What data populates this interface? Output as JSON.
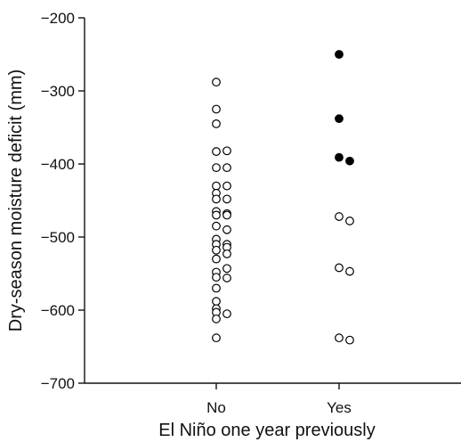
{
  "chart_data": {
    "type": "scatter",
    "title": "",
    "xlabel": "El Niño one year previously",
    "ylabel": "Dry-season moisture deficit (mm)",
    "categories": [
      "No",
      "Yes"
    ],
    "ylim": [
      -700,
      -200
    ],
    "yticks": [
      -200,
      -300,
      -400,
      -500,
      -600,
      -700
    ],
    "ytick_labels": [
      "−200",
      "−300",
      "−400",
      "−500",
      "−600",
      "−700"
    ],
    "grid": false,
    "legend": "none",
    "series": [
      {
        "marker": "open-circle",
        "points": [
          {
            "x": "No",
            "offset": 0,
            "y": -288
          },
          {
            "x": "No",
            "offset": 0,
            "y": -325
          },
          {
            "x": "No",
            "offset": 0,
            "y": -345
          },
          {
            "x": "No",
            "offset": 0,
            "y": -383
          },
          {
            "x": "No",
            "offset": 1,
            "y": -382
          },
          {
            "x": "No",
            "offset": 0,
            "y": -405
          },
          {
            "x": "No",
            "offset": 1,
            "y": -405
          },
          {
            "x": "No",
            "offset": 0,
            "y": -430
          },
          {
            "x": "No",
            "offset": 1,
            "y": -430
          },
          {
            "x": "No",
            "offset": 0,
            "y": -440
          },
          {
            "x": "No",
            "offset": 0,
            "y": -448
          },
          {
            "x": "No",
            "offset": 1,
            "y": -448
          },
          {
            "x": "No",
            "offset": 0,
            "y": -465
          },
          {
            "x": "No",
            "offset": 1,
            "y": -468
          },
          {
            "x": "No",
            "offset": 0,
            "y": -470
          },
          {
            "x": "No",
            "offset": 1,
            "y": -470
          },
          {
            "x": "No",
            "offset": 0,
            "y": -485
          },
          {
            "x": "No",
            "offset": 1,
            "y": -490
          },
          {
            "x": "No",
            "offset": 0,
            "y": -503
          },
          {
            "x": "No",
            "offset": 0,
            "y": -510
          },
          {
            "x": "No",
            "offset": 1,
            "y": -510
          },
          {
            "x": "No",
            "offset": 1,
            "y": -514
          },
          {
            "x": "No",
            "offset": 0,
            "y": -518
          },
          {
            "x": "No",
            "offset": 1,
            "y": -523
          },
          {
            "x": "No",
            "offset": 0,
            "y": -530
          },
          {
            "x": "No",
            "offset": 1,
            "y": -543
          },
          {
            "x": "No",
            "offset": 0,
            "y": -548
          },
          {
            "x": "No",
            "offset": 0,
            "y": -555
          },
          {
            "x": "No",
            "offset": 1,
            "y": -556
          },
          {
            "x": "No",
            "offset": 0,
            "y": -570
          },
          {
            "x": "No",
            "offset": 0,
            "y": -588
          },
          {
            "x": "No",
            "offset": 0,
            "y": -598
          },
          {
            "x": "No",
            "offset": 0,
            "y": -603
          },
          {
            "x": "No",
            "offset": 1,
            "y": -605
          },
          {
            "x": "No",
            "offset": 0,
            "y": -612
          },
          {
            "x": "No",
            "offset": 0,
            "y": -638
          },
          {
            "x": "Yes",
            "offset": 0,
            "y": -472
          },
          {
            "x": "Yes",
            "offset": 1,
            "y": -478
          },
          {
            "x": "Yes",
            "offset": 0,
            "y": -542
          },
          {
            "x": "Yes",
            "offset": 1,
            "y": -547
          },
          {
            "x": "Yes",
            "offset": 0,
            "y": -638
          },
          {
            "x": "Yes",
            "offset": 1,
            "y": -641
          }
        ]
      },
      {
        "marker": "filled-circle",
        "points": [
          {
            "x": "Yes",
            "offset": 0,
            "y": -250
          },
          {
            "x": "Yes",
            "offset": 0,
            "y": -338
          },
          {
            "x": "Yes",
            "offset": 0,
            "y": -391
          },
          {
            "x": "Yes",
            "offset": 1,
            "y": -396
          }
        ]
      }
    ],
    "colors": {
      "axis": "#111111",
      "marker": "#000000",
      "background": "#ffffff"
    }
  }
}
